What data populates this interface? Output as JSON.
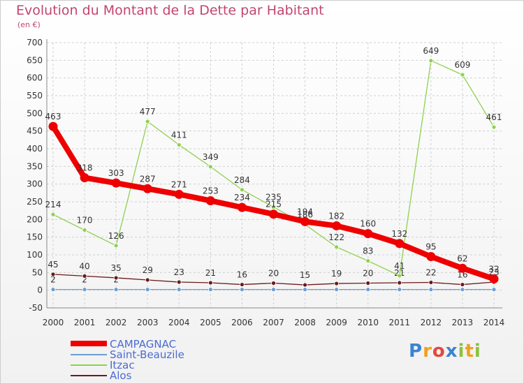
{
  "chart_data": {
    "type": "line",
    "title": "Evolution du Montant de la Dette par Habitant",
    "subtitle": "(en €)",
    "x": [
      "2000",
      "2001",
      "2002",
      "2003",
      "2004",
      "2005",
      "2006",
      "2007",
      "2008",
      "2009",
      "2010",
      "2011",
      "2012",
      "2013",
      "2014"
    ],
    "ylim": [
      -50,
      700
    ],
    "yticks": [
      -50,
      0,
      50,
      100,
      150,
      200,
      250,
      300,
      350,
      400,
      450,
      500,
      550,
      600,
      650,
      700
    ],
    "grid": true,
    "legend_position": "bottom-left",
    "series": [
      {
        "name": "CAMPAGNAC",
        "color": "#ee0000",
        "values": [
          463,
          318,
          303,
          287,
          271,
          253,
          234,
          215,
          194,
          182,
          160,
          132,
          95,
          62,
          32
        ],
        "labels": [
          "463",
          "318",
          "303",
          "287",
          "271",
          "253",
          "234",
          "215",
          "194",
          "182",
          "160",
          "132",
          "95",
          "62",
          "32"
        ]
      },
      {
        "name": "Saint-Beauzile",
        "color": "#6a9ed2",
        "values": [
          2,
          2,
          2,
          2,
          2,
          2,
          2,
          2,
          2,
          2,
          2,
          2,
          2,
          2,
          2
        ],
        "labels": [
          "2",
          "2",
          "2",
          "",
          "",
          "",
          "",
          "",
          "",
          "",
          "",
          "",
          "",
          "",
          ""
        ]
      },
      {
        "name": "Itzac",
        "color": "#8fd14f",
        "values": [
          214,
          170,
          126,
          477,
          411,
          349,
          284,
          235,
          186,
          122,
          83,
          41,
          649,
          609,
          461
        ],
        "labels": [
          "214",
          "170",
          "126",
          "477",
          "411",
          "349",
          "284",
          "235",
          "186",
          "122",
          "83",
          "41",
          "649",
          "609",
          "461"
        ]
      },
      {
        "name": "Alos",
        "color": "#6b1a1a",
        "values": [
          45,
          40,
          35,
          29,
          23,
          21,
          16,
          20,
          15,
          19,
          20,
          21,
          22,
          16,
          23
        ],
        "labels": [
          "45",
          "40",
          "35",
          "29",
          "23",
          "21",
          "16",
          "20",
          "15",
          "19",
          "20",
          "21",
          "22",
          "16",
          "23"
        ]
      }
    ]
  },
  "logo": {
    "p": "P",
    "r": "r",
    "o": "o",
    "x": "x",
    "i1": "i",
    "t": "t",
    "i2": "i"
  }
}
